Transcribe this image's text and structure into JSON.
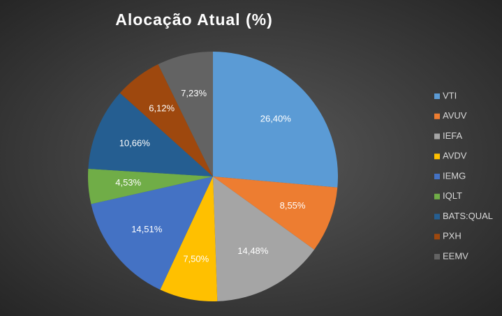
{
  "chart_data": {
    "type": "pie",
    "title": "Alocação Atual (%)",
    "categories": [
      "VTI",
      "AVUV",
      "IEFA",
      "AVDV",
      "IEMG",
      "IQLT",
      "BATS:QUAL",
      "PXH",
      "EEMV"
    ],
    "values": [
      26.4,
      8.55,
      14.48,
      7.5,
      14.51,
      4.53,
      10.66,
      6.12,
      7.23
    ],
    "value_labels": [
      "26,40%",
      "8,55%",
      "14,48%",
      "7,50%",
      "14,51%",
      "4,53%",
      "10,66%",
      "6,12%",
      "7,23%"
    ],
    "colors": [
      "#5b9bd5",
      "#ed7d31",
      "#a5a5a5",
      "#ffc000",
      "#4472c4",
      "#70ad47",
      "#255e91",
      "#9e480e",
      "#636363"
    ],
    "legend": "right"
  }
}
